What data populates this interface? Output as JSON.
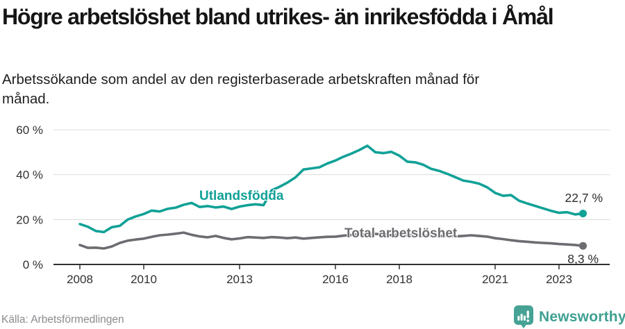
{
  "title": "Högre arbetslöshet bland utrikes- än inrikesfödda i Åmål",
  "subtitle": "Arbetssökande som andel av den registerbaserade arbetskraften månad för månad.",
  "source": "Källa: Arbetsförmedlingen",
  "branding": {
    "logo_text": "Newsworthy",
    "logo_color": "#3fa092",
    "icon": "speech-bubble-bar-chart-icon"
  },
  "chart_data": {
    "type": "line",
    "title": "Högre arbetslöshet bland utrikes- än inrikesfödda i Åmål",
    "xlabel": "",
    "ylabel": "",
    "unit": "%",
    "xlim": [
      2007.2,
      2024.6
    ],
    "ylim": [
      0,
      62
    ],
    "grid": "horizontal",
    "legend_position": "inline-labels",
    "x_ticks": [
      {
        "value": 2008,
        "label": "2008"
      },
      {
        "value": 2010,
        "label": "2010"
      },
      {
        "value": 2013,
        "label": "2013"
      },
      {
        "value": 2016,
        "label": "2016"
      },
      {
        "value": 2018,
        "label": "2018"
      },
      {
        "value": 2021,
        "label": "2021"
      },
      {
        "value": 2023,
        "label": "2023"
      }
    ],
    "y_ticks": [
      {
        "value": 0,
        "label": "0 %"
      },
      {
        "value": 20,
        "label": "20 %"
      },
      {
        "value": 40,
        "label": "40 %"
      },
      {
        "value": 60,
        "label": "60 %"
      }
    ],
    "x": [
      2008,
      2008.25,
      2008.5,
      2008.75,
      2009,
      2009.25,
      2009.5,
      2009.75,
      2010,
      2010.25,
      2010.5,
      2010.75,
      2011,
      2011.25,
      2011.5,
      2011.75,
      2012,
      2012.25,
      2012.5,
      2012.75,
      2013,
      2013.25,
      2013.5,
      2013.75,
      2014,
      2014.25,
      2014.5,
      2014.75,
      2015,
      2015.25,
      2015.5,
      2015.75,
      2016,
      2016.25,
      2016.5,
      2016.75,
      2017,
      2017.25,
      2017.5,
      2017.75,
      2018,
      2018.25,
      2018.5,
      2018.75,
      2019,
      2019.25,
      2019.5,
      2019.75,
      2020,
      2020.25,
      2020.5,
      2020.75,
      2021,
      2021.25,
      2021.5,
      2021.75,
      2022,
      2022.25,
      2022.5,
      2022.75,
      2023,
      2023.25,
      2023.5,
      2023.75
    ],
    "series": [
      {
        "name": "Utlandsfödda",
        "slug": "utlandsfodda",
        "color": "#11a197",
        "end_label": "22,7 %",
        "end_value": 22.7,
        "values": [
          18.0,
          16.8,
          14.9,
          14.4,
          16.6,
          17.2,
          20.0,
          21.4,
          22.5,
          24.0,
          23.6,
          24.8,
          25.3,
          26.6,
          27.4,
          25.6,
          26.0,
          25.4,
          25.8,
          24.7,
          25.8,
          26.4,
          26.8,
          26.4,
          33.0,
          34.6,
          36.5,
          38.8,
          42.3,
          42.8,
          43.3,
          45.0,
          46.3,
          48.0,
          49.4,
          51.0,
          52.9,
          50.0,
          49.6,
          50.2,
          48.5,
          45.8,
          45.5,
          44.4,
          42.6,
          41.7,
          40.4,
          38.9,
          37.4,
          36.8,
          36.0,
          34.4,
          31.9,
          30.6,
          30.9,
          28.4,
          27.2,
          26.1,
          25.0,
          23.9,
          23.0,
          23.3,
          22.3,
          22.7
        ]
      },
      {
        "name": "Total arbetslöshet",
        "slug": "total-arbetsloshet",
        "color": "#6c6c71",
        "end_label": "8,3 %",
        "end_value": 8.3,
        "values": [
          8.7,
          7.4,
          7.5,
          7.1,
          8.0,
          9.6,
          10.6,
          11.1,
          11.5,
          12.3,
          13.0,
          13.3,
          13.7,
          14.2,
          13.2,
          12.5,
          12.1,
          12.7,
          11.8,
          11.2,
          11.6,
          12.2,
          12.0,
          11.8,
          12.2,
          12.0,
          11.7,
          12.0,
          11.5,
          11.8,
          12.1,
          12.3,
          12.4,
          12.8,
          13.1,
          13.4,
          13.2,
          13.6,
          13.4,
          13.0,
          13.3,
          12.9,
          13.1,
          12.7,
          12.9,
          12.6,
          12.8,
          12.5,
          12.7,
          13.0,
          12.7,
          12.4,
          11.7,
          11.3,
          10.8,
          10.4,
          10.1,
          9.8,
          9.6,
          9.4,
          9.1,
          8.9,
          8.7,
          8.3
        ]
      }
    ]
  }
}
